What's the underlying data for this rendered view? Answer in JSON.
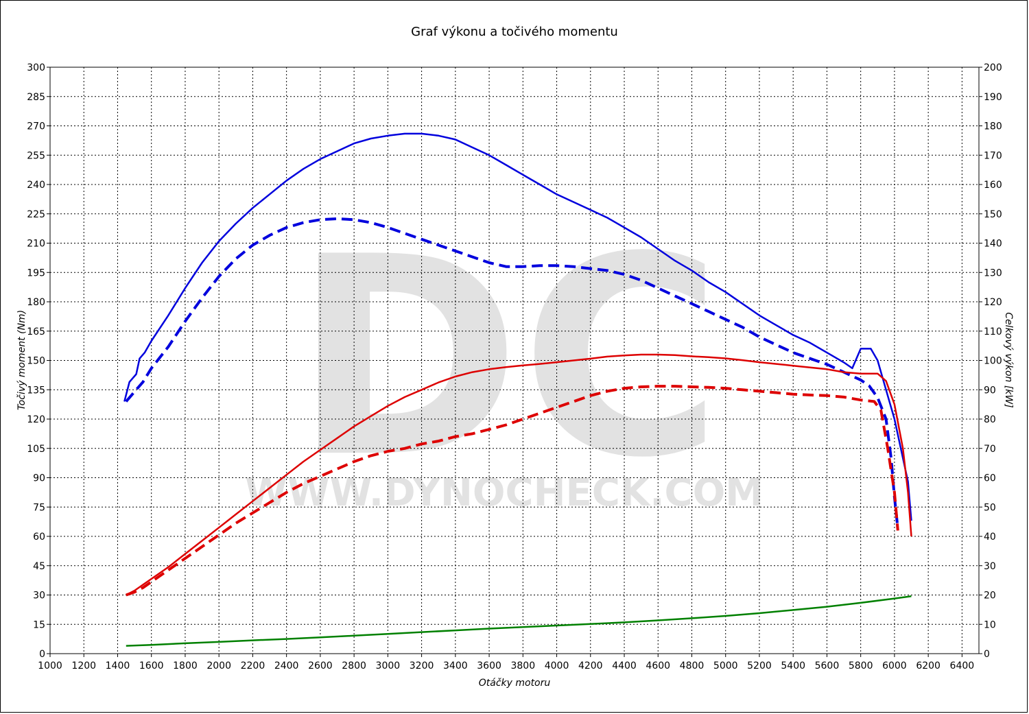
{
  "chart_data": {
    "type": "line",
    "title": "Graf výkonu a točivého momentu",
    "xlabel": "Otáčky motoru",
    "ylabel_left": "Točivý moment (Nm)",
    "ylabel_right": "Celkový výkon [kW]",
    "watermark": [
      "DC",
      "WWW.DYNOCHECK.COM"
    ],
    "xlim": [
      1000,
      6500
    ],
    "ylim_left": [
      0,
      300
    ],
    "ylim_right": [
      0,
      200
    ],
    "x_ticks": [
      "1000",
      "1200",
      "1400",
      "1600",
      "1800",
      "2000",
      "2200",
      "2400",
      "2600",
      "2800",
      "3000",
      "3200",
      "3400",
      "3600",
      "3800",
      "4000",
      "4200",
      "4400",
      "4600",
      "4800",
      "5000",
      "5200",
      "5400",
      "5600",
      "5800",
      "6000",
      "6200",
      "6400"
    ],
    "y_ticks_left": [
      "0",
      "15",
      "30",
      "45",
      "60",
      "75",
      "90",
      "105",
      "120",
      "135",
      "150",
      "165",
      "180",
      "195",
      "210",
      "225",
      "240",
      "255",
      "270",
      "285",
      "300"
    ],
    "y_ticks_right": [
      "0",
      "10",
      "20",
      "30",
      "40",
      "50",
      "60",
      "70",
      "80",
      "90",
      "100",
      "110",
      "120",
      "130",
      "140",
      "150",
      "160",
      "170",
      "180",
      "190",
      "200"
    ],
    "grid": true,
    "series": [
      {
        "color": "#0000dd",
        "style": "solid",
        "axis": "left",
        "points": [
          [
            1440,
            129
          ],
          [
            1470,
            139
          ],
          [
            1510,
            143
          ],
          [
            1530,
            151
          ],
          [
            1560,
            154
          ],
          [
            1600,
            160
          ],
          [
            1700,
            173
          ],
          [
            1800,
            187
          ],
          [
            1900,
            200
          ],
          [
            2000,
            211
          ],
          [
            2100,
            220
          ],
          [
            2200,
            228
          ],
          [
            2300,
            235
          ],
          [
            2400,
            242
          ],
          [
            2500,
            248
          ],
          [
            2600,
            253
          ],
          [
            2700,
            257
          ],
          [
            2800,
            261
          ],
          [
            2900,
            263.5
          ],
          [
            3000,
            265
          ],
          [
            3100,
            266
          ],
          [
            3200,
            266
          ],
          [
            3300,
            265
          ],
          [
            3400,
            263
          ],
          [
            3500,
            259
          ],
          [
            3600,
            255
          ],
          [
            3700,
            250
          ],
          [
            3800,
            245
          ],
          [
            3900,
            240
          ],
          [
            4000,
            235
          ],
          [
            4100,
            231
          ],
          [
            4200,
            227
          ],
          [
            4300,
            223
          ],
          [
            4400,
            218
          ],
          [
            4500,
            213
          ],
          [
            4600,
            207
          ],
          [
            4700,
            201
          ],
          [
            4800,
            196
          ],
          [
            4900,
            190
          ],
          [
            5000,
            185
          ],
          [
            5100,
            179
          ],
          [
            5200,
            173
          ],
          [
            5300,
            168
          ],
          [
            5400,
            163
          ],
          [
            5500,
            159
          ],
          [
            5600,
            154
          ],
          [
            5700,
            149
          ],
          [
            5750,
            146
          ],
          [
            5800,
            156
          ],
          [
            5860,
            156
          ],
          [
            5900,
            150
          ],
          [
            5950,
            135
          ],
          [
            6000,
            120
          ],
          [
            6050,
            100
          ],
          [
            6080,
            88
          ],
          [
            6100,
            68
          ]
        ]
      },
      {
        "color": "#0000dd",
        "style": "dashed",
        "axis": "left",
        "points": [
          [
            1450,
            129
          ],
          [
            1500,
            134
          ],
          [
            1550,
            139
          ],
          [
            1600,
            146
          ],
          [
            1700,
            157
          ],
          [
            1800,
            170
          ],
          [
            1900,
            182
          ],
          [
            2000,
            193
          ],
          [
            2100,
            202
          ],
          [
            2200,
            209
          ],
          [
            2300,
            214
          ],
          [
            2400,
            218
          ],
          [
            2500,
            220.5
          ],
          [
            2600,
            222
          ],
          [
            2700,
            222.5
          ],
          [
            2800,
            222
          ],
          [
            2900,
            220.5
          ],
          [
            3000,
            218
          ],
          [
            3100,
            215
          ],
          [
            3200,
            212
          ],
          [
            3300,
            209
          ],
          [
            3400,
            206
          ],
          [
            3500,
            203
          ],
          [
            3600,
            200
          ],
          [
            3700,
            198
          ],
          [
            3800,
            198
          ],
          [
            3900,
            198.5
          ],
          [
            4000,
            198.5
          ],
          [
            4100,
            198
          ],
          [
            4200,
            197
          ],
          [
            4300,
            196
          ],
          [
            4400,
            194
          ],
          [
            4500,
            191
          ],
          [
            4600,
            187
          ],
          [
            4700,
            183
          ],
          [
            4800,
            179
          ],
          [
            4900,
            175
          ],
          [
            5000,
            171
          ],
          [
            5100,
            167
          ],
          [
            5200,
            162
          ],
          [
            5300,
            158
          ],
          [
            5400,
            154
          ],
          [
            5500,
            151
          ],
          [
            5600,
            148
          ],
          [
            5700,
            144
          ],
          [
            5800,
            140
          ],
          [
            5850,
            137
          ],
          [
            5900,
            131
          ],
          [
            5950,
            120
          ],
          [
            5980,
            100
          ],
          [
            6000,
            80
          ],
          [
            6020,
            64
          ]
        ]
      },
      {
        "color": "#dd0000",
        "style": "solid",
        "axis": "right",
        "points": [
          [
            1450,
            20
          ],
          [
            1500,
            21.5
          ],
          [
            1550,
            23.5
          ],
          [
            1600,
            25.5
          ],
          [
            1700,
            29.5
          ],
          [
            1800,
            34
          ],
          [
            1900,
            38.5
          ],
          [
            2000,
            43
          ],
          [
            2100,
            47.5
          ],
          [
            2200,
            52
          ],
          [
            2300,
            56.5
          ],
          [
            2400,
            61
          ],
          [
            2500,
            65.5
          ],
          [
            2600,
            69.5
          ],
          [
            2700,
            73.5
          ],
          [
            2800,
            77.5
          ],
          [
            2900,
            81
          ],
          [
            3000,
            84.5
          ],
          [
            3100,
            87.5
          ],
          [
            3200,
            90
          ],
          [
            3300,
            92.5
          ],
          [
            3400,
            94.5
          ],
          [
            3500,
            96
          ],
          [
            3600,
            97
          ],
          [
            3700,
            97.7
          ],
          [
            3800,
            98.3
          ],
          [
            3900,
            98.8
          ],
          [
            4000,
            99.4
          ],
          [
            4100,
            100
          ],
          [
            4200,
            100.6
          ],
          [
            4300,
            101.3
          ],
          [
            4400,
            101.7
          ],
          [
            4500,
            102
          ],
          [
            4600,
            102
          ],
          [
            4700,
            101.8
          ],
          [
            4800,
            101.4
          ],
          [
            4900,
            101.1
          ],
          [
            5000,
            100.7
          ],
          [
            5100,
            100.1
          ],
          [
            5200,
            99.4
          ],
          [
            5300,
            98.8
          ],
          [
            5400,
            98.2
          ],
          [
            5500,
            97.6
          ],
          [
            5600,
            97
          ],
          [
            5700,
            96
          ],
          [
            5800,
            95.5
          ],
          [
            5900,
            95.5
          ],
          [
            5950,
            93
          ],
          [
            6000,
            85
          ],
          [
            6050,
            70
          ],
          [
            6080,
            55
          ],
          [
            6100,
            40
          ]
        ]
      },
      {
        "color": "#dd0000",
        "style": "dashed",
        "axis": "right",
        "points": [
          [
            1450,
            20
          ],
          [
            1500,
            21
          ],
          [
            1550,
            22.5
          ],
          [
            1600,
            24.5
          ],
          [
            1700,
            28.5
          ],
          [
            1800,
            32.5
          ],
          [
            1900,
            36.5
          ],
          [
            2000,
            40.5
          ],
          [
            2100,
            44.5
          ],
          [
            2200,
            48
          ],
          [
            2300,
            51.5
          ],
          [
            2400,
            55
          ],
          [
            2500,
            58
          ],
          [
            2600,
            60.5
          ],
          [
            2700,
            63
          ],
          [
            2800,
            65.5
          ],
          [
            2900,
            67.5
          ],
          [
            3000,
            69
          ],
          [
            3100,
            70
          ],
          [
            3200,
            71.5
          ],
          [
            3300,
            72.5
          ],
          [
            3400,
            74
          ],
          [
            3500,
            75
          ],
          [
            3600,
            76.5
          ],
          [
            3700,
            78
          ],
          [
            3800,
            80
          ],
          [
            3900,
            82
          ],
          [
            4000,
            84
          ],
          [
            4100,
            86
          ],
          [
            4200,
            88
          ],
          [
            4300,
            89.5
          ],
          [
            4400,
            90.5
          ],
          [
            4500,
            91
          ],
          [
            4600,
            91.2
          ],
          [
            4700,
            91.2
          ],
          [
            4800,
            91
          ],
          [
            4900,
            90.8
          ],
          [
            5000,
            90.5
          ],
          [
            5100,
            90
          ],
          [
            5200,
            89.5
          ],
          [
            5300,
            89
          ],
          [
            5400,
            88.5
          ],
          [
            5500,
            88.2
          ],
          [
            5600,
            88
          ],
          [
            5700,
            87.5
          ],
          [
            5800,
            86.5
          ],
          [
            5880,
            86
          ],
          [
            5920,
            83
          ],
          [
            5960,
            70
          ],
          [
            6000,
            55
          ],
          [
            6020,
            42
          ]
        ]
      },
      {
        "color": "#008000",
        "style": "solid",
        "axis": "left",
        "points": [
          [
            1450,
            4
          ],
          [
            1600,
            4.5
          ],
          [
            1800,
            5.3
          ],
          [
            2000,
            6
          ],
          [
            2200,
            6.8
          ],
          [
            2400,
            7.5
          ],
          [
            2600,
            8.3
          ],
          [
            2800,
            9.2
          ],
          [
            3000,
            10.1
          ],
          [
            3200,
            11
          ],
          [
            3400,
            11.9
          ],
          [
            3600,
            12.8
          ],
          [
            3800,
            13.6
          ],
          [
            4000,
            14.4
          ],
          [
            4200,
            15.2
          ],
          [
            4400,
            16
          ],
          [
            4600,
            17
          ],
          [
            4800,
            18.1
          ],
          [
            5000,
            19.3
          ],
          [
            5200,
            20.7
          ],
          [
            5400,
            22.3
          ],
          [
            5600,
            24
          ],
          [
            5800,
            26
          ],
          [
            6000,
            28.2
          ],
          [
            6100,
            29.4
          ]
        ]
      }
    ]
  }
}
